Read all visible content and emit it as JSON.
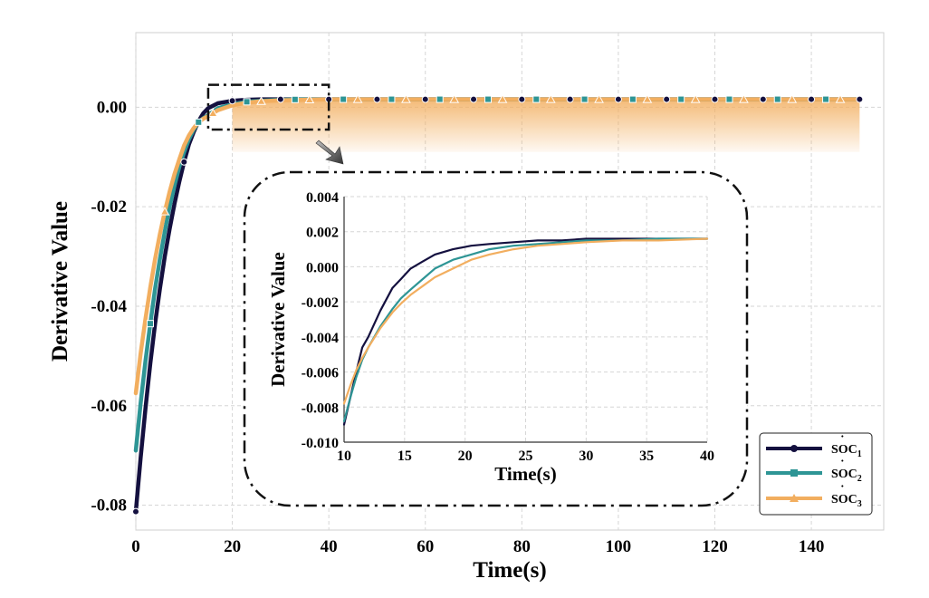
{
  "chart_data": [
    {
      "type": "line",
      "xlabel": "Time(s)",
      "ylabel": "Derivative Value",
      "xlim": [
        0,
        155
      ],
      "ylim": [
        -0.085,
        0.015
      ],
      "xticks": [
        "0",
        "20",
        "40",
        "60",
        "80",
        "100",
        "120",
        "140"
      ],
      "yticks": [
        "-0.08",
        "-0.06",
        "-0.04",
        "-0.02",
        "0.00"
      ],
      "grid": true,
      "legend_position": "bottom-right",
      "legend": [
        {
          "base": "SOC",
          "accent": "˙",
          "sub": "1"
        },
        {
          "base": "SOC",
          "accent": "˙",
          "sub": "2"
        },
        {
          "base": "SOC",
          "accent": "˙",
          "sub": "3"
        }
      ],
      "series": [
        {
          "color": "#14103f",
          "marker": "circle",
          "x": [
            0,
            1,
            2,
            3,
            4,
            5,
            6,
            7,
            8,
            9,
            10,
            11,
            12,
            13,
            14,
            15,
            17,
            20,
            23,
            26,
            30,
            35,
            40,
            50,
            60,
            80,
            100,
            120,
            150
          ],
          "y": [
            -0.0813,
            -0.0705,
            -0.0605,
            -0.0515,
            -0.0435,
            -0.0365,
            -0.03,
            -0.0245,
            -0.0195,
            -0.015,
            -0.011,
            -0.0075,
            -0.005,
            -0.0028,
            -0.0012,
            -0.0002,
            0.0008,
            0.0013,
            0.0015,
            0.0016,
            0.0016,
            0.0016,
            0.0016,
            0.0016,
            0.0016,
            0.0016,
            0.0016,
            0.0016,
            0.0016
          ]
        },
        {
          "color": "#2e9595",
          "marker": "square",
          "x": [
            0,
            1,
            2,
            3,
            4,
            5,
            6,
            7,
            8,
            9,
            10,
            11,
            12,
            13,
            14,
            15,
            17,
            20,
            23,
            26,
            30,
            35,
            40,
            50,
            60,
            80,
            100,
            120,
            150
          ],
          "y": [
            -0.069,
            -0.0595,
            -0.051,
            -0.0435,
            -0.0365,
            -0.0305,
            -0.025,
            -0.02,
            -0.0158,
            -0.012,
            -0.009,
            -0.0065,
            -0.0045,
            -0.003,
            -0.0022,
            -0.0016,
            -0.0002,
            0.0006,
            0.0011,
            0.0013,
            0.0015,
            0.0016,
            0.0016,
            0.0016,
            0.0016,
            0.0016,
            0.0016,
            0.0016,
            0.0016
          ]
        },
        {
          "color": "#f2ae5f",
          "marker": "triangle",
          "x": [
            0,
            1,
            2,
            3,
            4,
            5,
            6,
            7,
            8,
            9,
            10,
            11,
            12,
            13,
            14,
            15,
            17,
            20,
            23,
            26,
            30,
            35,
            40,
            50,
            60,
            80,
            100,
            120,
            150
          ],
          "y": [
            -0.0575,
            -0.0495,
            -0.0425,
            -0.0362,
            -0.0305,
            -0.0255,
            -0.021,
            -0.017,
            -0.0135,
            -0.0105,
            -0.0077,
            -0.0057,
            -0.0042,
            -0.003,
            -0.0023,
            -0.0018,
            -0.0006,
            0.0004,
            0.0009,
            0.0012,
            0.0014,
            0.0015,
            0.0016,
            0.0016,
            0.0016,
            0.0016,
            0.0016,
            0.0016,
            0.0016
          ]
        }
      ]
    },
    {
      "type": "line",
      "xlabel": "Time(s)",
      "ylabel": "Derivative Value",
      "xlim": [
        10,
        40
      ],
      "ylim": [
        -0.01,
        0.004
      ],
      "xticks": [
        "10",
        "15",
        "20",
        "25",
        "30",
        "35",
        "40"
      ],
      "yticks": [
        "-0.010",
        "-0.008",
        "-0.006",
        "-0.004",
        "-0.002",
        "0.000",
        "0.002",
        "0.004"
      ],
      "grid": true,
      "series": [
        {
          "color": "#14103f",
          "x": [
            10,
            10.5,
            11,
            11.5,
            12,
            13,
            14,
            14.7,
            15.5,
            16.5,
            17.5,
            19,
            20.5,
            22,
            24,
            26,
            28,
            30,
            33,
            36,
            40
          ],
          "y": [
            -0.009,
            -0.0075,
            -0.006,
            -0.0046,
            -0.004,
            -0.0025,
            -0.0012,
            -0.0007,
            -0.0001,
            0.0003,
            0.0007,
            0.001,
            0.0012,
            0.0013,
            0.0014,
            0.0015,
            0.0015,
            0.0016,
            0.0016,
            0.0016,
            0.0016
          ]
        },
        {
          "color": "#2e9595",
          "x": [
            10,
            10.5,
            11,
            11.5,
            12,
            13,
            14,
            14.7,
            15.5,
            16.5,
            17.5,
            19,
            20.5,
            22,
            24,
            26,
            28,
            30,
            33,
            36,
            40
          ],
          "y": [
            -0.0088,
            -0.0075,
            -0.0063,
            -0.0053,
            -0.0046,
            -0.0034,
            -0.0024,
            -0.0018,
            -0.0013,
            -0.0007,
            -0.0001,
            0.0004,
            0.0007,
            0.001,
            0.0012,
            0.0013,
            0.0014,
            0.0015,
            0.0015,
            0.0016,
            0.0016
          ]
        },
        {
          "color": "#f2ae5f",
          "x": [
            10,
            10.5,
            11,
            11.5,
            12,
            13,
            14,
            14.7,
            15.5,
            16.5,
            17.5,
            19,
            20.5,
            22,
            24,
            26,
            28,
            30,
            33,
            36,
            40
          ],
          "y": [
            -0.0078,
            -0.0068,
            -0.0059,
            -0.0052,
            -0.0046,
            -0.0035,
            -0.0026,
            -0.0021,
            -0.0016,
            -0.0011,
            -0.0006,
            -0.0001,
            0.0004,
            0.0007,
            0.001,
            0.0012,
            0.0013,
            0.0014,
            0.0015,
            0.0015,
            0.0016
          ]
        }
      ]
    }
  ]
}
